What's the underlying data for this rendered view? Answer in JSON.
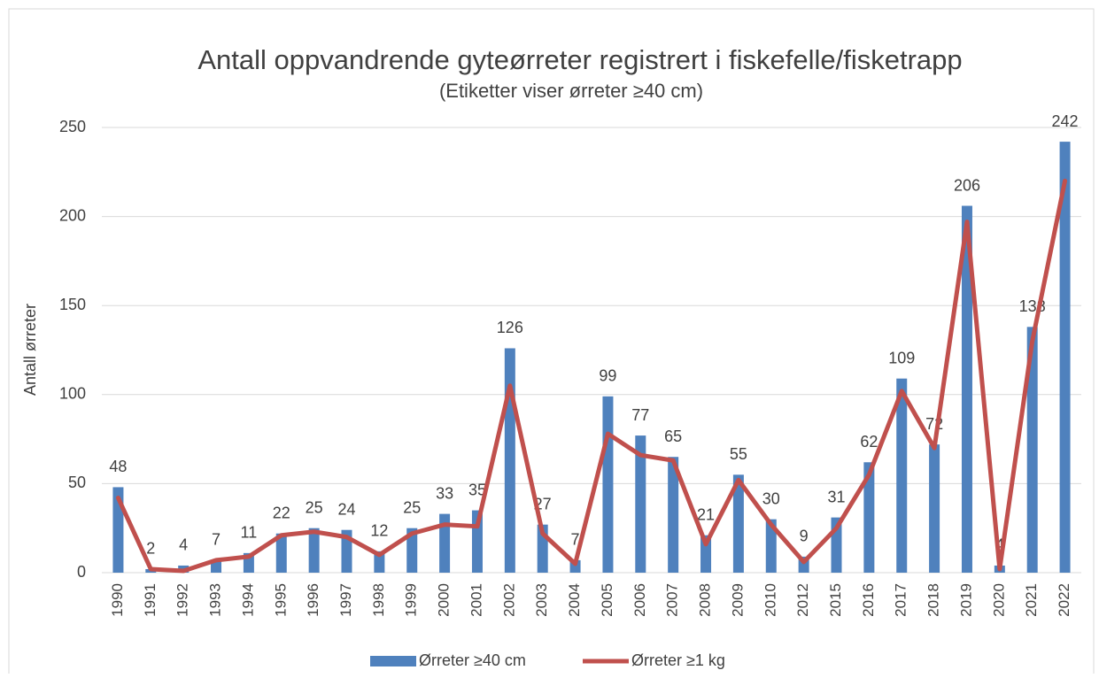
{
  "chart_data": {
    "type": "bar",
    "title": "Antall oppvandrende gyteørreter registrert i fiskefelle/fisketrapp",
    "subtitle": "(Etiketter viser ørreter ≥40 cm)",
    "y_label": "Antall ørreter",
    "categories": [
      "1990",
      "1991",
      "1992",
      "1993",
      "1994",
      "1995",
      "1996",
      "1997",
      "1998",
      "1999",
      "2000",
      "2001",
      "2002",
      "2003",
      "2004",
      "2005",
      "2006",
      "2007",
      "2008",
      "2009",
      "2010",
      "2012",
      "2015",
      "2016",
      "2017",
      "2018",
      "2019",
      "2020",
      "2021",
      "2022"
    ],
    "series": [
      {
        "name": "Ørreter ≥40 cm",
        "type": "bar",
        "color": "#4f81bd",
        "values": [
          48,
          2,
          4,
          7,
          11,
          22,
          25,
          24,
          12,
          25,
          33,
          35,
          126,
          27,
          7,
          99,
          77,
          65,
          21,
          55,
          30,
          9,
          31,
          62,
          109,
          72,
          206,
          4,
          138,
          242
        ]
      },
      {
        "name": "Ørreter ≥1 kg",
        "type": "line",
        "color": "#c0504d",
        "values": [
          42,
          2,
          1,
          7,
          9,
          21,
          23,
          20,
          10,
          22,
          27,
          26,
          105,
          22,
          5,
          78,
          66,
          63,
          16,
          52,
          27,
          6,
          25,
          55,
          102,
          70,
          197,
          2,
          130,
          220
        ]
      }
    ],
    "ylim": [
      0,
      250
    ],
    "yticks": [
      0,
      50,
      100,
      150,
      200,
      250
    ],
    "grid": true,
    "legend": "bottom"
  }
}
